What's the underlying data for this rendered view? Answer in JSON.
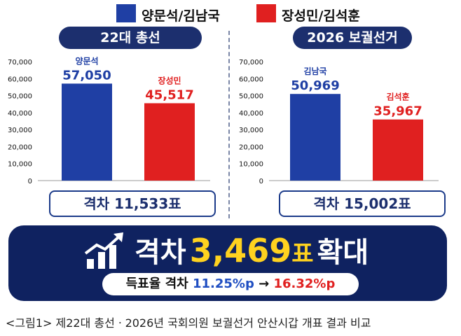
{
  "legend": [
    {
      "label": "양문석/김남국",
      "color": "#1f3fa4"
    },
    {
      "label": "장성민/김석훈",
      "color": "#e02020"
    }
  ],
  "chart_data": [
    {
      "type": "bar",
      "title": "22대 총선",
      "categories": [
        "양문석",
        "장성민"
      ],
      "values": [
        57050,
        45517
      ],
      "value_labels": [
        "57,050",
        "45,517"
      ],
      "colors": [
        "#1f3fa4",
        "#e02020"
      ],
      "ylim": [
        0,
        70000
      ],
      "yticks": [
        "70,000",
        "60,000",
        "50,000",
        "40,000",
        "30,000",
        "20,000",
        "10,000",
        "0"
      ],
      "note": "격차 11,533표"
    },
    {
      "type": "bar",
      "title": "2026 보궐선거",
      "categories": [
        "김남국",
        "김석훈"
      ],
      "values": [
        50969,
        35967
      ],
      "value_labels": [
        "50,969",
        "35,967"
      ],
      "colors": [
        "#1f3fa4",
        "#e02020"
      ],
      "ylim": [
        0,
        70000
      ],
      "yticks": [
        "70,000",
        "60,000",
        "50,000",
        "40,000",
        "30,000",
        "20,000",
        "10,000",
        "0"
      ],
      "note": "격차 15,002표"
    }
  ],
  "banner": {
    "word1": "격차",
    "number": "3,469",
    "word2": "표",
    "word3": "확대",
    "rate_label": "득표율 격차",
    "rate_from": "11.25%p",
    "arrow": "→",
    "rate_to": "16.32%p"
  },
  "caption": "<그림1> 제22대 총선ㆍ2026년 국회의원 보궐선거 안산시갑 개표 결과 비교"
}
